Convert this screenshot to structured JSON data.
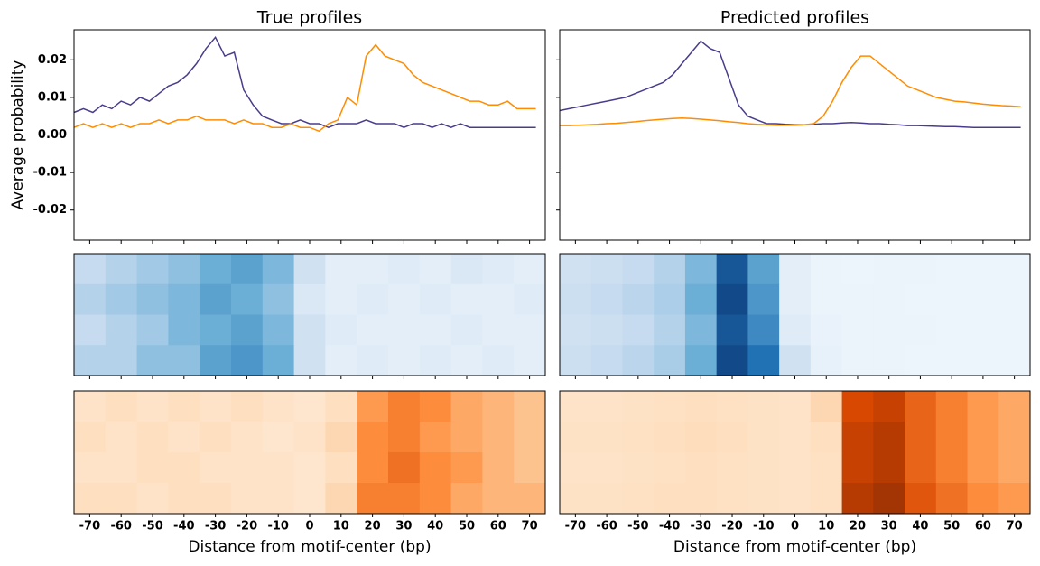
{
  "chart_data": [
    {
      "type": "line",
      "title": "True profiles",
      "ylabel": "Average probability",
      "x": [
        -75,
        -72,
        -69,
        -66,
        -63,
        -60,
        -57,
        -54,
        -51,
        -48,
        -45,
        -42,
        -39,
        -36,
        -33,
        -30,
        -27,
        -24,
        -21,
        -18,
        -15,
        -12,
        -9,
        -6,
        -3,
        0,
        3,
        6,
        9,
        12,
        15,
        18,
        21,
        24,
        27,
        30,
        33,
        36,
        39,
        42,
        45,
        48,
        51,
        54,
        57,
        60,
        63,
        66,
        69,
        72
      ],
      "series": [
        {
          "color": "#483d8b",
          "values": [
            0.006,
            0.007,
            0.006,
            0.008,
            0.007,
            0.009,
            0.008,
            0.01,
            0.009,
            0.011,
            0.013,
            0.014,
            0.016,
            0.019,
            0.023,
            0.026,
            0.021,
            0.022,
            0.012,
            0.008,
            0.005,
            0.004,
            0.003,
            0.003,
            0.004,
            0.003,
            0.003,
            0.002,
            0.003,
            0.003,
            0.003,
            0.004,
            0.003,
            0.003,
            0.003,
            0.002,
            0.003,
            0.003,
            0.002,
            0.003,
            0.002,
            0.003,
            0.002,
            0.002,
            0.002,
            0.002,
            0.002,
            0.002,
            0.002,
            0.002
          ]
        },
        {
          "color": "#ff8c00",
          "values": [
            0.002,
            0.003,
            0.002,
            0.003,
            0.002,
            0.003,
            0.002,
            0.003,
            0.003,
            0.004,
            0.003,
            0.004,
            0.004,
            0.005,
            0.004,
            0.004,
            0.004,
            0.003,
            0.004,
            0.003,
            0.003,
            0.002,
            0.002,
            0.003,
            0.002,
            0.002,
            0.001,
            0.003,
            0.004,
            0.01,
            0.008,
            0.021,
            0.024,
            0.021,
            0.02,
            0.019,
            0.016,
            0.014,
            0.013,
            0.012,
            0.011,
            0.01,
            0.009,
            0.009,
            0.008,
            0.008,
            0.009,
            0.007,
            0.007,
            0.007
          ]
        }
      ],
      "xlim": [
        -75,
        75
      ],
      "xticks": [
        -70,
        -60,
        -50,
        -40,
        -30,
        -20,
        -10,
        0,
        10,
        20,
        30,
        40,
        50,
        60,
        70
      ],
      "ylim": [
        -0.028,
        0.028
      ],
      "yticks": [
        -0.02,
        -0.01,
        {
          "value": 0,
          "label": "0.00"
        },
        0.01,
        0.02
      ]
    },
    {
      "type": "line",
      "title": "Predicted profiles",
      "x": [
        -75,
        -72,
        -69,
        -66,
        -63,
        -60,
        -57,
        -54,
        -51,
        -48,
        -45,
        -42,
        -39,
        -36,
        -33,
        -30,
        -27,
        -24,
        -21,
        -18,
        -15,
        -12,
        -9,
        -6,
        -3,
        0,
        3,
        6,
        9,
        12,
        15,
        18,
        21,
        24,
        27,
        30,
        33,
        36,
        39,
        42,
        45,
        48,
        51,
        54,
        57,
        60,
        63,
        66,
        69,
        72
      ],
      "series": [
        {
          "color": "#483d8b",
          "values": [
            0.0065,
            0.007,
            0.0075,
            0.008,
            0.0085,
            0.009,
            0.0095,
            0.01,
            0.011,
            0.012,
            0.013,
            0.014,
            0.016,
            0.019,
            0.022,
            0.025,
            0.023,
            0.022,
            0.015,
            0.008,
            0.005,
            0.004,
            0.003,
            0.003,
            0.0028,
            0.0027,
            0.0027,
            0.0028,
            0.003,
            0.003,
            0.0032,
            0.0033,
            0.0032,
            0.003,
            0.003,
            0.0028,
            0.0027,
            0.0025,
            0.0025,
            0.0024,
            0.0023,
            0.0022,
            0.0022,
            0.0021,
            0.002,
            0.002,
            0.002,
            0.002,
            0.002,
            0.002
          ]
        },
        {
          "color": "#ff8c00",
          "values": [
            0.0025,
            0.0025,
            0.0026,
            0.0027,
            0.0028,
            0.003,
            0.0031,
            0.0033,
            0.0035,
            0.0038,
            0.004,
            0.0042,
            0.0044,
            0.0045,
            0.0044,
            0.0042,
            0.004,
            0.0038,
            0.0035,
            0.0033,
            0.003,
            0.0028,
            0.0027,
            0.0026,
            0.0026,
            0.0026,
            0.0027,
            0.003,
            0.005,
            0.009,
            0.014,
            0.018,
            0.021,
            0.021,
            0.019,
            0.017,
            0.015,
            0.013,
            0.012,
            0.011,
            0.01,
            0.0095,
            0.009,
            0.0088,
            0.0085,
            0.0082,
            0.008,
            0.0078,
            0.0077,
            0.0075
          ]
        }
      ],
      "xlim": [
        -75,
        75
      ],
      "xticks": [
        -70,
        -60,
        -50,
        -40,
        -30,
        -20,
        -10,
        0,
        10,
        20,
        30,
        40,
        50,
        60,
        70
      ],
      "ylim": [
        -0.028,
        0.028
      ],
      "yticks": [
        -0.02,
        -0.01,
        0,
        0.01,
        0.02
      ]
    },
    {
      "type": "heatmap",
      "colors": [
        "#f7fbff",
        "#c6dbef",
        "#6baed6",
        "#2171b5",
        "#08306b"
      ],
      "xlim": [
        -75,
        75
      ],
      "xticks": [
        -70,
        -60,
        -50,
        -40,
        -30,
        -20,
        -10,
        0,
        10,
        20,
        30,
        40,
        50,
        60,
        70
      ],
      "values": [
        [
          0.25,
          0.3,
          0.35,
          0.4,
          0.5,
          0.55,
          0.45,
          0.2,
          0.1,
          0.1,
          0.12,
          0.1,
          0.15,
          0.12,
          0.1
        ],
        [
          0.3,
          0.35,
          0.4,
          0.45,
          0.55,
          0.5,
          0.4,
          0.15,
          0.1,
          0.12,
          0.1,
          0.12,
          0.1,
          0.1,
          0.12
        ],
        [
          0.25,
          0.3,
          0.35,
          0.45,
          0.5,
          0.55,
          0.45,
          0.2,
          0.12,
          0.1,
          0.1,
          0.1,
          0.12,
          0.1,
          0.1
        ],
        [
          0.3,
          0.3,
          0.4,
          0.4,
          0.55,
          0.6,
          0.5,
          0.2,
          0.1,
          0.12,
          0.1,
          0.12,
          0.1,
          0.12,
          0.1
        ]
      ]
    },
    {
      "type": "heatmap",
      "colors": [
        "#f7fbff",
        "#c6dbef",
        "#6baed6",
        "#2171b5",
        "#08306b"
      ],
      "xlim": [
        -75,
        75
      ],
      "xticks": [
        -70,
        -60,
        -50,
        -40,
        -30,
        -20,
        -10,
        0,
        10,
        20,
        30,
        40,
        50,
        60,
        70
      ],
      "values": [
        [
          0.2,
          0.22,
          0.25,
          0.3,
          0.45,
          0.85,
          0.55,
          0.1,
          0.06,
          0.05,
          0.06,
          0.06,
          0.05,
          0.05,
          0.05
        ],
        [
          0.22,
          0.25,
          0.28,
          0.32,
          0.5,
          0.9,
          0.6,
          0.1,
          0.06,
          0.06,
          0.06,
          0.05,
          0.05,
          0.05,
          0.05
        ],
        [
          0.2,
          0.22,
          0.25,
          0.3,
          0.45,
          0.85,
          0.65,
          0.12,
          0.07,
          0.06,
          0.06,
          0.06,
          0.05,
          0.05,
          0.05
        ],
        [
          0.22,
          0.25,
          0.28,
          0.33,
          0.5,
          0.9,
          0.75,
          0.2,
          0.08,
          0.06,
          0.06,
          0.05,
          0.05,
          0.05,
          0.05
        ]
      ]
    },
    {
      "type": "heatmap",
      "colors": [
        "#fff5eb",
        "#fdd0a2",
        "#fd8d3c",
        "#d94801",
        "#7f2704"
      ],
      "xlim": [
        -75,
        75
      ],
      "xticks": [
        -70,
        -60,
        -50,
        -40,
        -30,
        -20,
        -10,
        0,
        10,
        20,
        30,
        40,
        50,
        60,
        70
      ],
      "xlabel": "Distance from motif-center (bp)",
      "values": [
        [
          0.12,
          0.15,
          0.12,
          0.15,
          0.12,
          0.15,
          0.12,
          0.1,
          0.15,
          0.45,
          0.55,
          0.5,
          0.4,
          0.35,
          0.3
        ],
        [
          0.15,
          0.12,
          0.15,
          0.12,
          0.15,
          0.12,
          0.1,
          0.12,
          0.2,
          0.5,
          0.55,
          0.45,
          0.4,
          0.35,
          0.3
        ],
        [
          0.12,
          0.12,
          0.15,
          0.15,
          0.12,
          0.12,
          0.12,
          0.1,
          0.15,
          0.5,
          0.6,
          0.5,
          0.45,
          0.35,
          0.3
        ],
        [
          0.15,
          0.15,
          0.12,
          0.15,
          0.15,
          0.12,
          0.12,
          0.1,
          0.2,
          0.55,
          0.55,
          0.5,
          0.4,
          0.35,
          0.35
        ]
      ]
    },
    {
      "type": "heatmap",
      "colors": [
        "#fff5eb",
        "#fdd0a2",
        "#fd8d3c",
        "#d94801",
        "#7f2704"
      ],
      "xlim": [
        -75,
        75
      ],
      "xticks": [
        -70,
        -60,
        -50,
        -40,
        -30,
        -20,
        -10,
        0,
        10,
        20,
        30,
        40,
        50,
        60,
        70
      ],
      "xlabel": "Distance from motif-center (bp)",
      "values": [
        [
          0.12,
          0.12,
          0.13,
          0.14,
          0.15,
          0.14,
          0.13,
          0.12,
          0.2,
          0.75,
          0.8,
          0.65,
          0.55,
          0.45,
          0.4
        ],
        [
          0.13,
          0.13,
          0.14,
          0.15,
          0.16,
          0.15,
          0.13,
          0.12,
          0.15,
          0.8,
          0.85,
          0.65,
          0.55,
          0.45,
          0.4
        ],
        [
          0.12,
          0.12,
          0.13,
          0.14,
          0.15,
          0.14,
          0.13,
          0.12,
          0.14,
          0.8,
          0.85,
          0.65,
          0.55,
          0.45,
          0.4
        ],
        [
          0.13,
          0.13,
          0.14,
          0.15,
          0.15,
          0.14,
          0.13,
          0.12,
          0.14,
          0.85,
          0.9,
          0.7,
          0.6,
          0.5,
          0.45
        ]
      ]
    }
  ]
}
